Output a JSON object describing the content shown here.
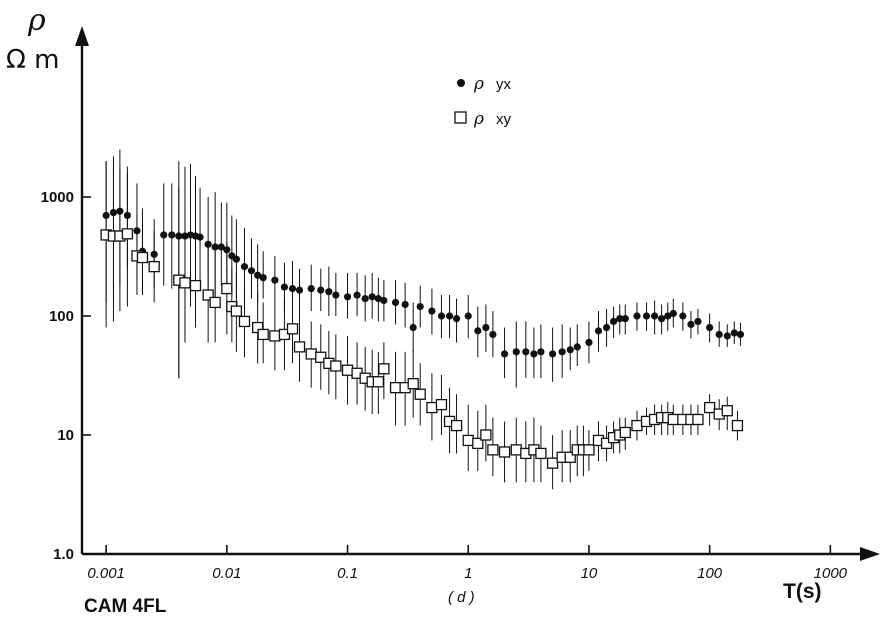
{
  "chart_data": {
    "type": "scatter",
    "title": "",
    "panel_label": "( d )",
    "site_label": "CAM 4FL",
    "xlabel": "T(s)",
    "ylabel": {
      "symbol": "ρ",
      "unit": "Ω m"
    },
    "x_scale": "log",
    "y_scale": "log",
    "xlim": [
      0.0006,
      2500
    ],
    "ylim": [
      1,
      4500
    ],
    "x_ticks": [
      0.001,
      0.01,
      0.1,
      1,
      10,
      100,
      1000
    ],
    "x_tick_labels": [
      "0.001",
      "0.01",
      "0.1",
      "1",
      "10",
      "100",
      "1000"
    ],
    "y_ticks": [
      1,
      10,
      100,
      1000
    ],
    "y_tick_labels": [
      "1.0",
      "10",
      "100",
      "1000"
    ],
    "grid": false,
    "legend_position": "top-right",
    "series": [
      {
        "name": "ρ yx",
        "legend_symbol": "ρ",
        "legend_suffix": "yx",
        "marker": "filled-circle",
        "points": [
          [
            0.001,
            700,
            130,
            2000
          ],
          [
            0.00115,
            740,
            140,
            2200
          ],
          [
            0.0013,
            760,
            180,
            2500
          ],
          [
            0.0015,
            700,
            250,
            1800
          ],
          [
            0.0018,
            520,
            200,
            1300
          ],
          [
            0.002,
            350,
            160,
            800
          ],
          [
            0.0025,
            330,
            170,
            650
          ],
          [
            0.003,
            480,
            180,
            1300
          ],
          [
            0.0035,
            480,
            170,
            1300
          ],
          [
            0.004,
            470,
            30,
            2000
          ],
          [
            0.0045,
            470,
            60,
            1800
          ],
          [
            0.005,
            480,
            120,
            1900
          ],
          [
            0.0055,
            470,
            150,
            1500
          ],
          [
            0.006,
            460,
            180,
            1200
          ],
          [
            0.007,
            400,
            160,
            1000
          ],
          [
            0.008,
            380,
            130,
            1100
          ],
          [
            0.009,
            380,
            180,
            900
          ],
          [
            0.01,
            360,
            150,
            900
          ],
          [
            0.011,
            320,
            150,
            700
          ],
          [
            0.012,
            300,
            140,
            650
          ],
          [
            0.014,
            260,
            130,
            550
          ],
          [
            0.016,
            240,
            140,
            450
          ],
          [
            0.018,
            220,
            130,
            400
          ],
          [
            0.02,
            210,
            140,
            350
          ],
          [
            0.025,
            200,
            130,
            320
          ],
          [
            0.03,
            175,
            110,
            280
          ],
          [
            0.035,
            170,
            100,
            290
          ],
          [
            0.04,
            165,
            110,
            250
          ],
          [
            0.05,
            170,
            110,
            270
          ],
          [
            0.06,
            165,
            110,
            250
          ],
          [
            0.07,
            160,
            100,
            260
          ],
          [
            0.08,
            150,
            100,
            230
          ],
          [
            0.1,
            145,
            95,
            230
          ],
          [
            0.12,
            150,
            100,
            230
          ],
          [
            0.14,
            140,
            90,
            220
          ],
          [
            0.16,
            145,
            95,
            230
          ],
          [
            0.18,
            140,
            90,
            210
          ],
          [
            0.2,
            135,
            90,
            200
          ],
          [
            0.25,
            130,
            85,
            200
          ],
          [
            0.3,
            125,
            80,
            190
          ],
          [
            0.35,
            80,
            50,
            130
          ],
          [
            0.4,
            120,
            80,
            180
          ],
          [
            0.5,
            110,
            70,
            170
          ],
          [
            0.6,
            100,
            65,
            150
          ],
          [
            0.7,
            100,
            65,
            150
          ],
          [
            0.8,
            95,
            60,
            140
          ],
          [
            1.0,
            100,
            65,
            150
          ],
          [
            1.2,
            75,
            45,
            120
          ],
          [
            1.4,
            80,
            50,
            125
          ],
          [
            1.6,
            70,
            45,
            110
          ],
          [
            2.0,
            48,
            30,
            80
          ],
          [
            2.5,
            50,
            25,
            90
          ],
          [
            3.0,
            50,
            30,
            90
          ],
          [
            3.5,
            48,
            30,
            80
          ],
          [
            4.0,
            50,
            30,
            85
          ],
          [
            5.0,
            48,
            28,
            80
          ],
          [
            6.0,
            50,
            30,
            85
          ],
          [
            7.0,
            52,
            35,
            80
          ],
          [
            8.0,
            55,
            38,
            85
          ],
          [
            10,
            60,
            40,
            90
          ],
          [
            12,
            75,
            50,
            110
          ],
          [
            14,
            80,
            55,
            115
          ],
          [
            16,
            90,
            65,
            120
          ],
          [
            18,
            95,
            70,
            125
          ],
          [
            20,
            95,
            70,
            125
          ],
          [
            25,
            100,
            75,
            130
          ],
          [
            30,
            100,
            75,
            130
          ],
          [
            35,
            100,
            70,
            135
          ],
          [
            40,
            95,
            70,
            125
          ],
          [
            45,
            100,
            75,
            130
          ],
          [
            50,
            105,
            80,
            140
          ],
          [
            60,
            100,
            75,
            130
          ],
          [
            70,
            85,
            65,
            110
          ],
          [
            80,
            90,
            70,
            115
          ],
          [
            100,
            80,
            60,
            105
          ],
          [
            120,
            70,
            55,
            90
          ],
          [
            140,
            68,
            55,
            85
          ],
          [
            160,
            72,
            58,
            90
          ],
          [
            180,
            70,
            56,
            88
          ]
        ]
      },
      {
        "name": "ρ xy",
        "legend_symbol": "ρ",
        "legend_suffix": "xy",
        "marker": "open-square",
        "points": [
          [
            0.001,
            480,
            80,
            2000
          ],
          [
            0.00115,
            470,
            90,
            1800
          ],
          [
            0.0013,
            470,
            110,
            1700
          ],
          [
            0.0015,
            490,
            120,
            1600
          ],
          [
            0.0018,
            320,
            150,
            700
          ],
          [
            0.002,
            310,
            150,
            650
          ],
          [
            0.0025,
            260,
            130,
            520
          ],
          [
            0.004,
            200,
            30,
            1200
          ],
          [
            0.0045,
            190,
            60,
            800
          ],
          [
            0.0055,
            180,
            80,
            500
          ],
          [
            0.007,
            150,
            60,
            400
          ],
          [
            0.008,
            130,
            60,
            350
          ],
          [
            0.01,
            170,
            70,
            420
          ],
          [
            0.011,
            120,
            60,
            250
          ],
          [
            0.012,
            110,
            50,
            230
          ],
          [
            0.014,
            90,
            45,
            180
          ],
          [
            0.018,
            80,
            40,
            160
          ],
          [
            0.02,
            70,
            40,
            130
          ],
          [
            0.025,
            68,
            35,
            130
          ],
          [
            0.03,
            70,
            35,
            140
          ],
          [
            0.035,
            78,
            40,
            150
          ],
          [
            0.04,
            55,
            28,
            110
          ],
          [
            0.05,
            48,
            25,
            90
          ],
          [
            0.06,
            45,
            24,
            85
          ],
          [
            0.07,
            40,
            22,
            75
          ],
          [
            0.08,
            38,
            20,
            70
          ],
          [
            0.1,
            35,
            18,
            68
          ],
          [
            0.12,
            33,
            18,
            60
          ],
          [
            0.14,
            30,
            16,
            55
          ],
          [
            0.16,
            28,
            15,
            52
          ],
          [
            0.18,
            28,
            15,
            50
          ],
          [
            0.2,
            36,
            20,
            60
          ],
          [
            0.25,
            25,
            12,
            50
          ],
          [
            0.3,
            25,
            12,
            50
          ],
          [
            0.35,
            27,
            14,
            52
          ],
          [
            0.4,
            22,
            12,
            40
          ],
          [
            0.5,
            17,
            9,
            33
          ],
          [
            0.6,
            18,
            10,
            32
          ],
          [
            0.7,
            13,
            7,
            25
          ],
          [
            0.8,
            12,
            7,
            22
          ],
          [
            1.0,
            9,
            5,
            18
          ],
          [
            1.2,
            8.5,
            5,
            16
          ],
          [
            1.4,
            10,
            6,
            18
          ],
          [
            1.6,
            7.5,
            4.5,
            14
          ],
          [
            2.0,
            7.2,
            4,
            13
          ],
          [
            2.5,
            7.5,
            4,
            14
          ],
          [
            3.0,
            7.0,
            4,
            13
          ],
          [
            3.5,
            7.5,
            4,
            14
          ],
          [
            4.0,
            7.0,
            4,
            12
          ],
          [
            5.0,
            5.8,
            3.5,
            10
          ],
          [
            6.0,
            6.5,
            4,
            11
          ],
          [
            7.0,
            6.5,
            4,
            11
          ],
          [
            8.0,
            7.5,
            4.5,
            12
          ],
          [
            9.0,
            7.5,
            4.5,
            12
          ],
          [
            10,
            7.5,
            5,
            11
          ],
          [
            12,
            9,
            6,
            13
          ],
          [
            14,
            8.5,
            6,
            12
          ],
          [
            16,
            9.5,
            7,
            13
          ],
          [
            18,
            10,
            7,
            14
          ],
          [
            20,
            10.5,
            7.5,
            14
          ],
          [
            25,
            12,
            9,
            16
          ],
          [
            30,
            13,
            10,
            17
          ],
          [
            35,
            13.5,
            10,
            18
          ],
          [
            40,
            14,
            10,
            18
          ],
          [
            45,
            14,
            10,
            19
          ],
          [
            50,
            13.5,
            10,
            18
          ],
          [
            60,
            13.5,
            10,
            18
          ],
          [
            70,
            13.5,
            10,
            18
          ],
          [
            80,
            13.5,
            10,
            18
          ],
          [
            100,
            17,
            12,
            22
          ],
          [
            120,
            15,
            11,
            20
          ],
          [
            140,
            16,
            11,
            21
          ],
          [
            170,
            12,
            9,
            16
          ]
        ]
      }
    ]
  }
}
